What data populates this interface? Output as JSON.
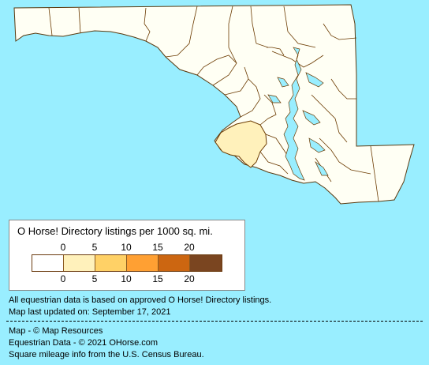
{
  "colors": {
    "background": "#99eeff",
    "state_fill": "#fffff4",
    "county_border": "#6b3a00",
    "bins": [
      "#ffffff",
      "#fff1bb",
      "#ffd166",
      "#ffa033",
      "#cc6611",
      "#7a4520"
    ],
    "highlight_county": "#fff1bb"
  },
  "legend": {
    "title": "O Horse! Directory listings per 1000 sq. mi.",
    "ticks": [
      "0",
      "5",
      "10",
      "15",
      "20"
    ]
  },
  "footnotes": {
    "line1": "All equestrian data is based on approved O Horse! Directory listings.",
    "line2": "Map last updated on: September 17, 2021"
  },
  "credits": {
    "line1": "Map - © Map Resources",
    "line2": "Equestrian Data - © 2021 OHorse.com",
    "line3": "Square mileage info from the U.S. Census Bureau."
  }
}
